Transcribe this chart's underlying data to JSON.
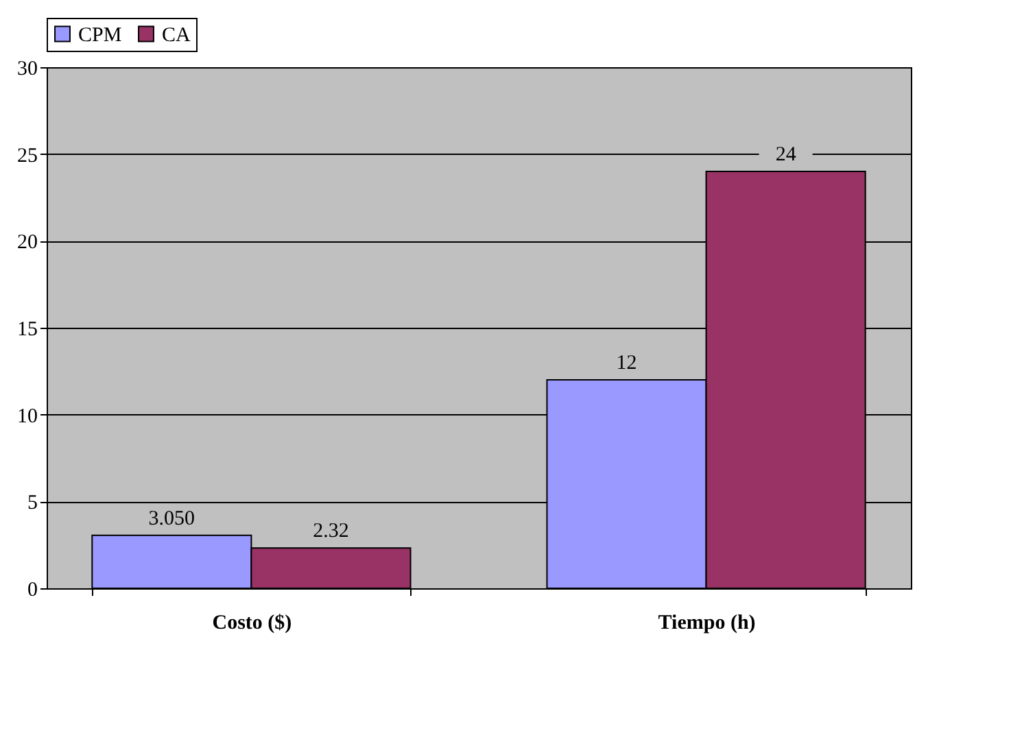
{
  "chart_data": {
    "type": "bar",
    "categories": [
      "Costo ($)",
      "Tiempo (h)"
    ],
    "series": [
      {
        "name": "CPM",
        "color": "#9999ff",
        "values": [
          3.05,
          12
        ],
        "value_labels": [
          "3.050",
          "12"
        ]
      },
      {
        "name": "CA",
        "color": "#993366",
        "values": [
          2.32,
          24
        ],
        "value_labels": [
          "2.32",
          "24"
        ]
      }
    ],
    "ylim": [
      0,
      30
    ],
    "yticks": [
      0,
      5,
      10,
      15,
      20,
      25,
      30
    ],
    "grid": "y",
    "legend": "top"
  }
}
